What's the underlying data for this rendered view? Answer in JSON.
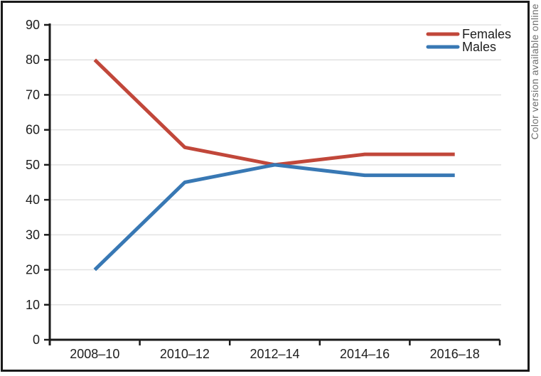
{
  "figure": {
    "side_note": "Color version available online"
  },
  "chart_data": {
    "type": "line",
    "title": "",
    "xlabel": "",
    "ylabel": "",
    "categories": [
      "2008–10",
      "2010–12",
      "2012–14",
      "2014–16",
      "2016–18"
    ],
    "series": [
      {
        "name": "Females",
        "color": "#c1473a",
        "values": [
          80,
          55,
          50,
          53,
          53
        ]
      },
      {
        "name": "Males",
        "color": "#3878b4",
        "values": [
          20,
          45,
          50,
          47,
          47
        ]
      }
    ],
    "ylim": [
      0,
      90
    ],
    "yticks": [
      0,
      10,
      20,
      30,
      40,
      50,
      60,
      70,
      80,
      90
    ],
    "grid": "horizontal",
    "legend_position": "top-right"
  },
  "colors": {
    "axis": "#1a1a1a",
    "grid": "#e2e2e2",
    "text": "#1d1d1d",
    "frame": "#1a1a1a",
    "side_note": "#6e6e6e",
    "background": "#ffffff"
  }
}
